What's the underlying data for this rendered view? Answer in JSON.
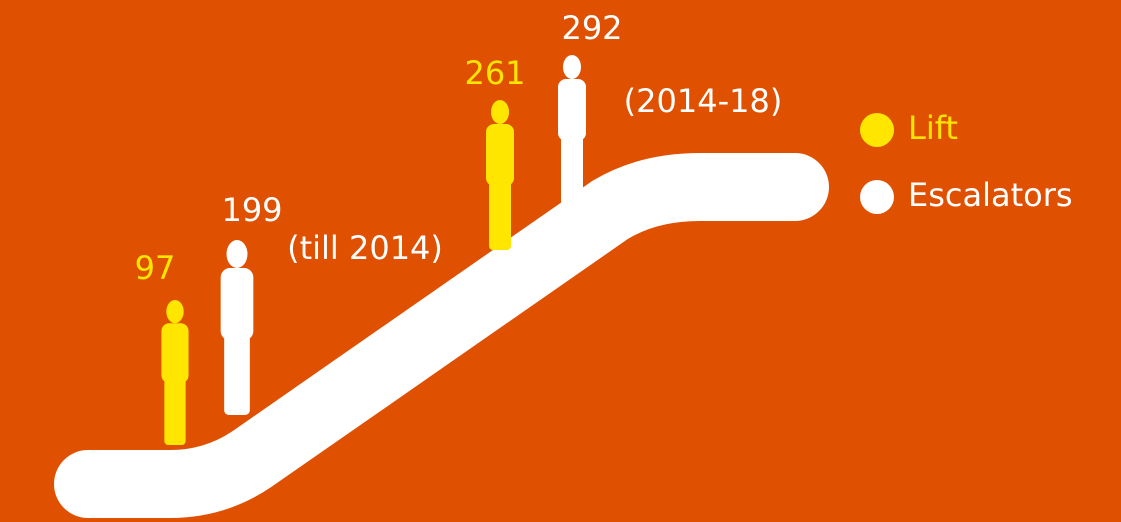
{
  "legend": [
    {
      "label": "Lift",
      "color": "#ffe600"
    },
    {
      "label": "Escalators",
      "color": "#ffffff"
    }
  ],
  "groups": [
    {
      "label": "(till 2014)",
      "values": [
        97,
        199
      ]
    },
    {
      "label": "(2014-18)",
      "values": [
        261,
        292
      ]
    }
  ]
}
